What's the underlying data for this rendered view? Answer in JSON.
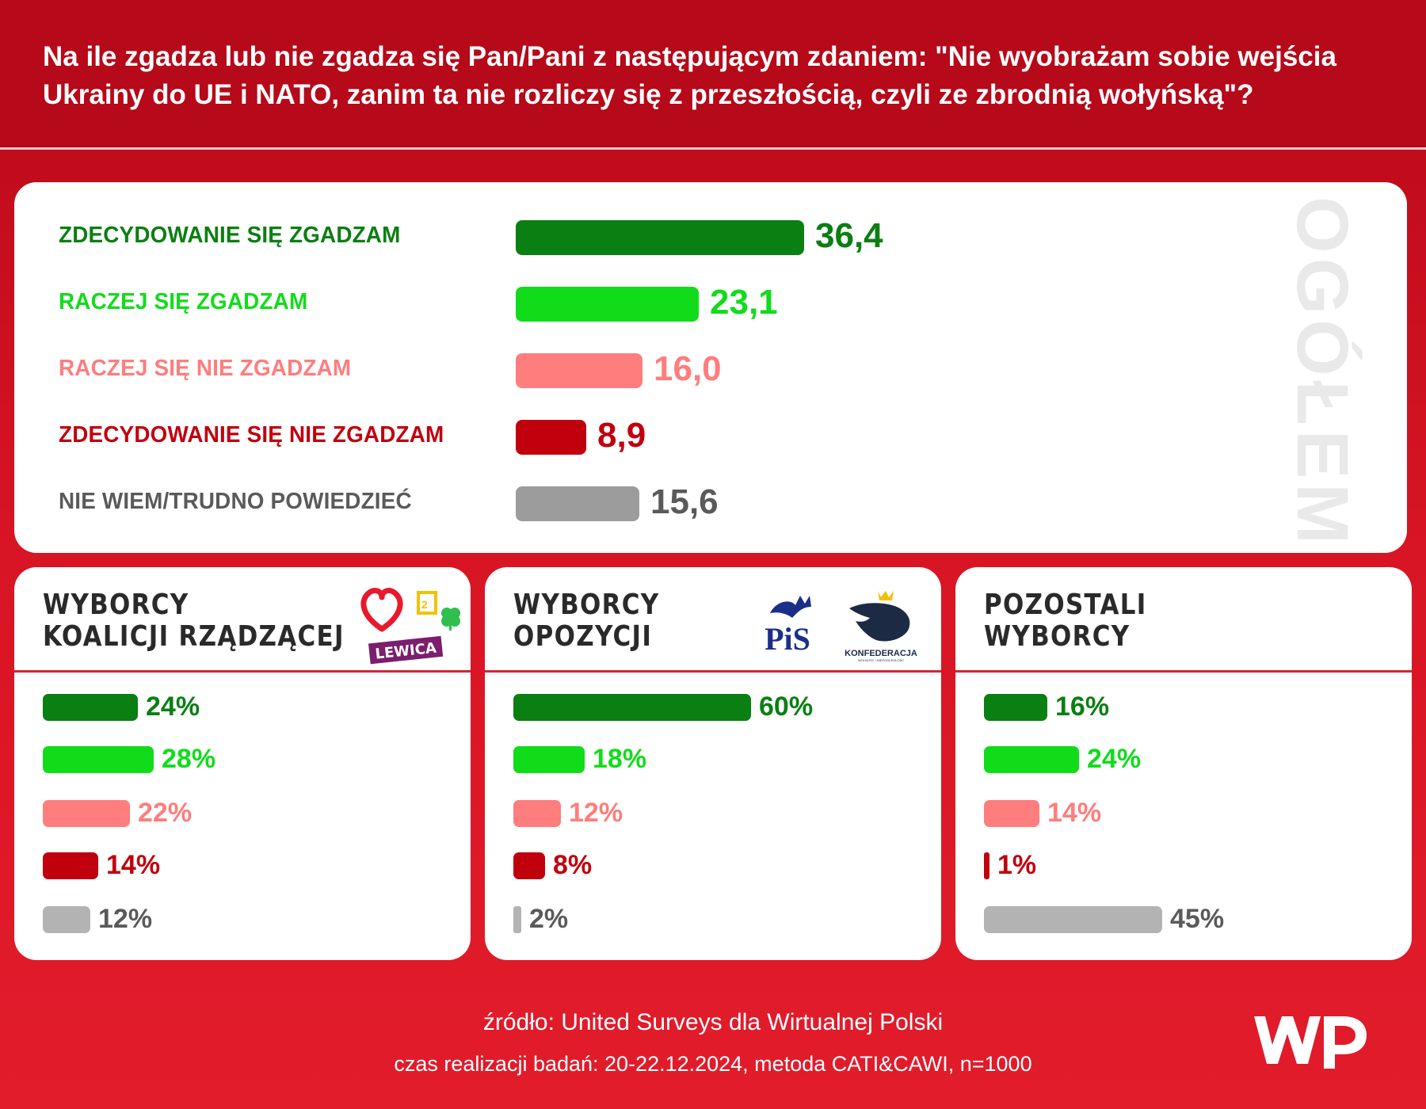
{
  "title": "Na ile zgadza lub nie zgadza się Pan/Pani z następującym zdaniem: \"Nie wyobrażam sobie wejścia Ukrainy do UE i NATO, zanim ta nie rozliczy się z przeszłością, czyli ze zbrodnią wołyńską\"?",
  "colors": {
    "strongly_agree": "#0a7f12",
    "agree": "#11dc1a",
    "disagree": "#ff7d7d",
    "strongly_disagree": "#c1000e",
    "dont_know": "#9c9c9c",
    "dont_know_light": "#b3b3b3"
  },
  "chart_data": [
    {
      "type": "bar",
      "title": "OGÓŁEM",
      "categories": [
        "ZDECYDOWANIE SIĘ ZGADZAM",
        "RACZEJ SIĘ ZGADZAM",
        "RACZEJ SIĘ NIE ZGADZAM",
        "ZDECYDOWANIE SIĘ NIE ZGADZAM",
        "NIE WIEM/TRUDNO POWIEDZIEĆ"
      ],
      "values": [
        36.4,
        23.1,
        16.0,
        8.9,
        15.6
      ],
      "value_labels": [
        "36,4",
        "23,1",
        "16,0",
        "8,9",
        "15,6"
      ]
    },
    {
      "type": "bar",
      "title": "WYBORCY KOALICJI RZĄDZĄCEJ",
      "title_lines": [
        "WYBORCY",
        "KOALICJI RZĄDZĄCEJ"
      ],
      "values": [
        24,
        28,
        22,
        14,
        12
      ],
      "value_labels": [
        "24%",
        "28%",
        "22%",
        "14%",
        "12%"
      ]
    },
    {
      "type": "bar",
      "title": "WYBORCY OPOZYCJI",
      "title_lines": [
        "WYBORCY",
        "OPOZYCJI"
      ],
      "values": [
        60,
        18,
        12,
        8,
        2
      ],
      "value_labels": [
        "60%",
        "18%",
        "12%",
        "8%",
        "2%"
      ]
    },
    {
      "type": "bar",
      "title": "POZOSTALI WYBORCY",
      "title_lines": [
        "POZOSTALI",
        "WYBORCY"
      ],
      "values": [
        16,
        24,
        14,
        1,
        45
      ],
      "value_labels": [
        "16%",
        "24%",
        "14%",
        "1%",
        "45%"
      ]
    }
  ],
  "logos": {
    "lewica": "LEWICA",
    "pis": "PiS",
    "konfederacja": "KONFEDERACJA",
    "konfederacja_sub": "WOLNOŚĆ I NIEPODLEGŁOŚĆ",
    "wp": "WP"
  },
  "footer": {
    "source": "źródło: United Surveys dla Wirtualnej Polski",
    "method": "czas realizacji badań: 20-22.12.2024, metoda CATI&CAWI, n=1000"
  }
}
